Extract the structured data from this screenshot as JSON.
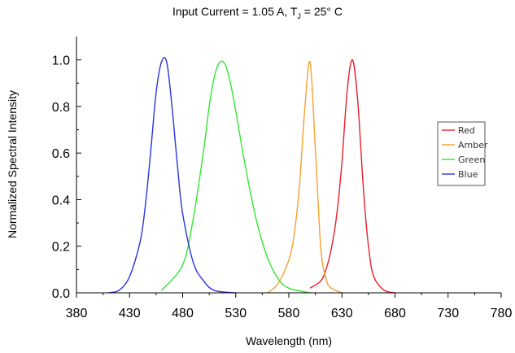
{
  "chart_data": {
    "type": "line",
    "title": {
      "prefix": "Input Current = 1.05 A, T",
      "subscript": "J",
      "suffix": " = 25° C"
    },
    "xlabel": "Wavelength (nm)",
    "ylabel": "Normalized Spectral Intensity",
    "xlim": [
      380,
      780
    ],
    "ylim": [
      0,
      1.1
    ],
    "xticks": [
      380,
      430,
      480,
      530,
      580,
      630,
      680,
      730,
      780
    ],
    "yticks": [
      0.0,
      0.2,
      0.4,
      0.6,
      0.8,
      1.0
    ],
    "ytick_labels": [
      "0.0",
      "0.2",
      "0.4",
      "0.6",
      "0.8",
      "1.0"
    ],
    "grid": false,
    "legend_position": "right",
    "series": [
      {
        "name": "Red",
        "color": "#e8202a",
        "x": [
          600,
          610,
          615,
          620,
          625,
          630,
          635,
          640,
          645,
          650,
          655,
          660,
          670,
          680
        ],
        "y": [
          0.02,
          0.05,
          0.1,
          0.19,
          0.33,
          0.56,
          0.87,
          1.0,
          0.82,
          0.46,
          0.2,
          0.07,
          0.01,
          0.0
        ]
      },
      {
        "name": "Amber",
        "color": "#f5a030",
        "x": [
          560,
          570,
          580,
          585,
          590,
          595,
          600,
          605,
          610,
          615,
          620,
          630
        ],
        "y": [
          0.0,
          0.04,
          0.14,
          0.25,
          0.46,
          0.79,
          0.99,
          0.62,
          0.2,
          0.06,
          0.02,
          0.0
        ]
      },
      {
        "name": "Green",
        "color": "#30e830",
        "x": [
          460,
          480,
          490,
          500,
          505,
          510,
          515,
          520,
          525,
          530,
          540,
          550,
          560,
          570,
          580,
          600
        ],
        "y": [
          0.01,
          0.12,
          0.32,
          0.62,
          0.8,
          0.93,
          0.99,
          0.98,
          0.9,
          0.78,
          0.52,
          0.3,
          0.15,
          0.06,
          0.02,
          0.0
        ]
      },
      {
        "name": "Blue",
        "color": "#2a34e0",
        "x": [
          410,
          420,
          430,
          440,
          445,
          450,
          455,
          460,
          465,
          470,
          475,
          480,
          490,
          500,
          510,
          530
        ],
        "y": [
          0.0,
          0.01,
          0.07,
          0.22,
          0.38,
          0.61,
          0.86,
          0.99,
          0.99,
          0.8,
          0.55,
          0.34,
          0.13,
          0.05,
          0.01,
          0.0
        ]
      }
    ]
  }
}
